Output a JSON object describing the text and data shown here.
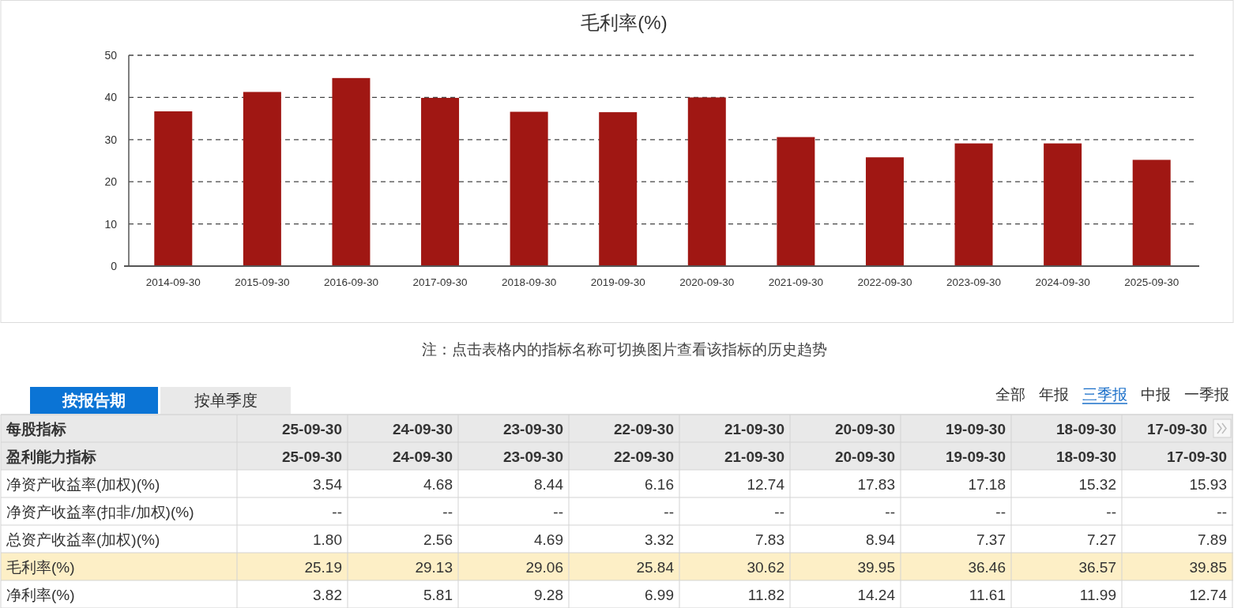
{
  "chart_data": [
    {
      "type": "bar",
      "title": "毛利率(%)",
      "categories": [
        "2014-09-30",
        "2015-09-30",
        "2016-09-30",
        "2017-09-30",
        "2018-09-30",
        "2019-09-30",
        "2020-09-30",
        "2021-09-30",
        "2022-09-30",
        "2023-09-30",
        "2024-09-30",
        "2025-09-30"
      ],
      "values": [
        36.7,
        41.3,
        44.6,
        39.9,
        36.6,
        36.5,
        40.0,
        30.6,
        25.8,
        29.1,
        29.1,
        25.2
      ],
      "color": "#a01713",
      "ylim": [
        0,
        50
      ],
      "yticks": [
        0,
        10,
        20,
        30,
        40,
        50
      ],
      "grid": "y",
      "annotations": [
        "注：点击表格内的指标名称可切换图片查看该指标的历史趋势"
      ]
    },
    {
      "type": "other",
      "ylabel": "每股指标",
      "categories": [
        "25-09-30",
        "24-09-30",
        "23-09-30",
        "22-09-30",
        "21-09-30",
        "20-09-30",
        "19-09-30",
        "18-09-30",
        "17-09-30"
      ],
      "y_categories": [
        "盈利能力指标",
        "净资产收益率(加权)(%)",
        "净资产收益率(扣非/加权)(%)",
        "总资产收益率(加权)(%)",
        "毛利率(%)",
        "净利率(%)"
      ],
      "cell_labels": [
        [
          "25-09-30",
          "24-09-30",
          "23-09-30",
          "22-09-30",
          "21-09-30",
          "20-09-30",
          "19-09-30",
          "18-09-30",
          "17-09-30"
        ],
        [
          "3.54",
          "4.68",
          "8.44",
          "6.16",
          "12.74",
          "17.83",
          "17.18",
          "15.32",
          "15.93"
        ],
        [
          "--",
          "--",
          "--",
          "--",
          "--",
          "--",
          "--",
          "--",
          "--"
        ],
        [
          "1.80",
          "2.56",
          "4.69",
          "3.32",
          "7.83",
          "8.94",
          "7.37",
          "7.27",
          "7.89"
        ],
        [
          "25.19",
          "29.13",
          "29.06",
          "25.84",
          "30.62",
          "39.95",
          "36.46",
          "36.57",
          "39.85"
        ],
        [
          "3.82",
          "5.81",
          "9.28",
          "6.99",
          "11.82",
          "14.24",
          "11.61",
          "11.99",
          "12.74"
        ]
      ],
      "annotations": [
        "按报告期",
        "按单季度",
        "全部",
        "年报",
        "三季报",
        "中报",
        "一季报"
      ]
    }
  ]
}
